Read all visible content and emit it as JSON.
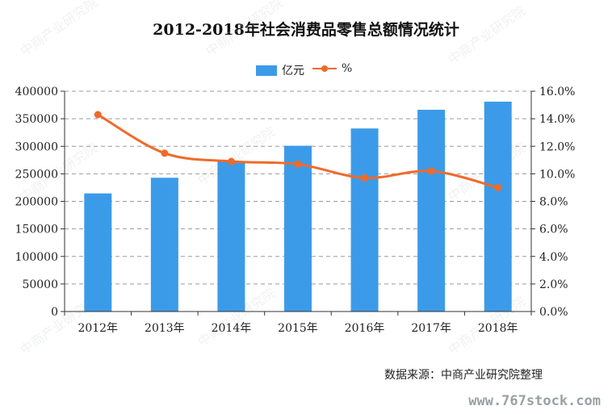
{
  "title": "2012-2018年社会消费品零售总额情况统计",
  "source": "数据来源：中商产业研究院整理",
  "site": "www.767stock.com",
  "colors": {
    "bar": "#3c9be8",
    "line": "#f06a2a",
    "grid": "#9a9a9a",
    "axis": "#333333"
  },
  "chart_data": {
    "type": "bar",
    "categories": [
      "2012年",
      "2013年",
      "2014年",
      "2015年",
      "2016年",
      "2017年",
      "2018年"
    ],
    "series": [
      {
        "name": "亿元",
        "type": "bar",
        "axis": "left",
        "values": [
          214433,
          242843,
          271896,
          300931,
          332316,
          366262,
          380987
        ]
      },
      {
        "name": "%",
        "type": "line",
        "axis": "right",
        "values": [
          14.3,
          11.5,
          10.9,
          10.7,
          9.7,
          10.2,
          9.0
        ]
      }
    ],
    "y_left": {
      "min": 0,
      "max": 400000,
      "ticks": [
        "0",
        "50000",
        "100000",
        "150000",
        "200000",
        "250000",
        "300000",
        "350000",
        "400000"
      ]
    },
    "y_right": {
      "min": 0,
      "max": 16,
      "ticks": [
        "0.0%",
        "2.0%",
        "4.0%",
        "6.0%",
        "8.0%",
        "10.0%",
        "12.0%",
        "14.0%",
        "16.0%"
      ]
    },
    "grid": true,
    "legend": "top-center"
  }
}
